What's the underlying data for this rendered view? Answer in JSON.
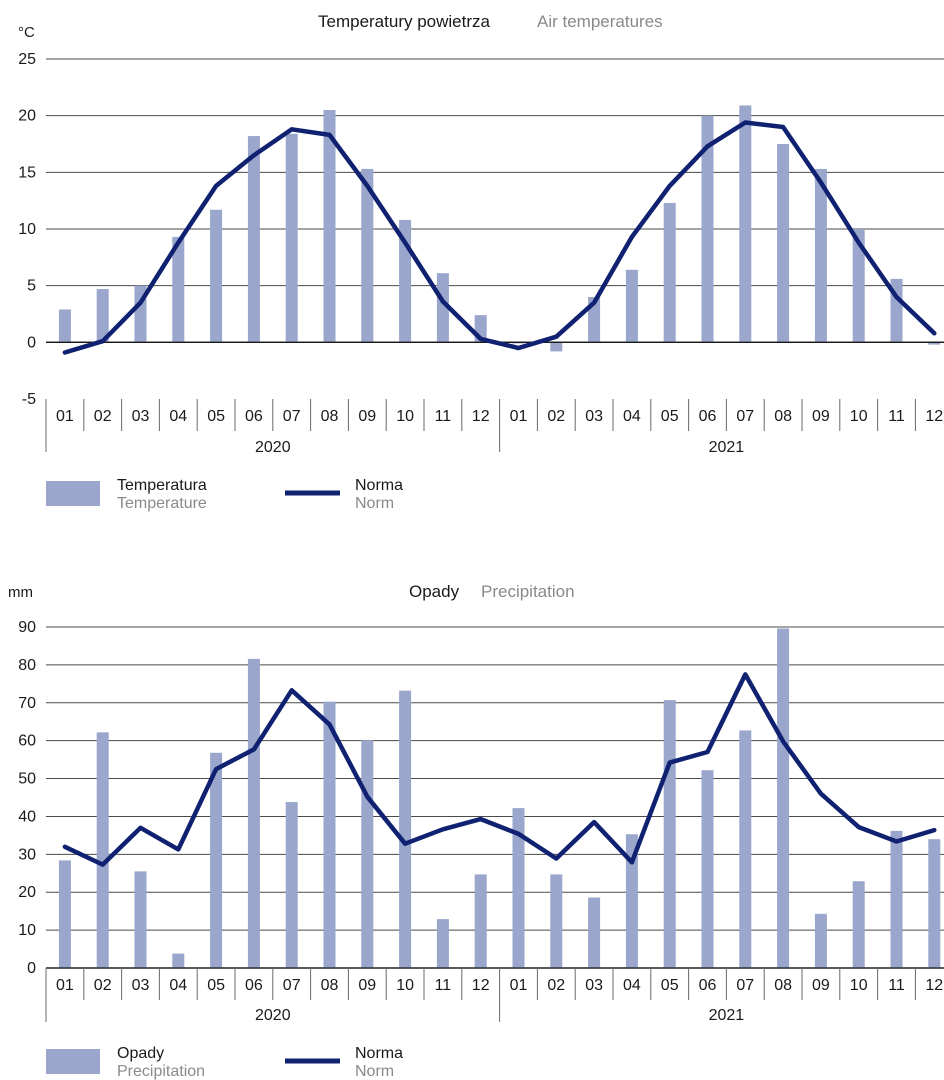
{
  "colors": {
    "bar": "#9aa6cc",
    "line": "#0f2170"
  },
  "chart_data": [
    {
      "type": "bar",
      "title": "Temperatury powietrza",
      "subtitle": "Air temperatures",
      "ylabel": "°C",
      "ylim": [
        -5,
        25
      ],
      "yticks": [
        "-5",
        "0",
        "5",
        "10",
        "15",
        "20",
        "25"
      ],
      "categories": [
        "01",
        "02",
        "03",
        "04",
        "05",
        "06",
        "07",
        "08",
        "09",
        "10",
        "11",
        "12",
        "01",
        "02",
        "03",
        "04",
        "05",
        "06",
        "07",
        "08",
        "09",
        "10",
        "11",
        "12"
      ],
      "years": [
        "2020",
        "2021"
      ],
      "series": [
        {
          "name": "Temperatura",
          "name_en": "Temperature",
          "type": "bar",
          "values": [
            2.9,
            4.7,
            5.0,
            9.3,
            11.7,
            18.2,
            18.4,
            20.5,
            15.3,
            10.8,
            6.1,
            2.4,
            -0.1,
            -0.8,
            4.0,
            6.4,
            12.3,
            20.0,
            20.9,
            17.5,
            15.3,
            10.0,
            5.6,
            -0.2
          ]
        },
        {
          "name": "Norma",
          "name_en": "Norm",
          "type": "line",
          "values": [
            -0.9,
            0.1,
            3.5,
            8.8,
            13.8,
            16.5,
            18.8,
            18.3,
            13.8,
            8.8,
            3.6,
            0.3,
            -0.5,
            0.5,
            3.5,
            9.3,
            13.8,
            17.3,
            19.4,
            19.0,
            14.1,
            8.8,
            4.0,
            0.8
          ]
        }
      ]
    },
    {
      "type": "bar",
      "title": "Opady",
      "subtitle": "Precipitation",
      "ylabel": "mm",
      "ylim": [
        0,
        90
      ],
      "yticks": [
        "0",
        "10",
        "20",
        "30",
        "40",
        "50",
        "60",
        "70",
        "80",
        "90"
      ],
      "categories": [
        "01",
        "02",
        "03",
        "04",
        "05",
        "06",
        "07",
        "08",
        "09",
        "10",
        "11",
        "12",
        "01",
        "02",
        "03",
        "04",
        "05",
        "06",
        "07",
        "08",
        "09",
        "10",
        "11",
        "12"
      ],
      "years": [
        "2020",
        "2021"
      ],
      "series": [
        {
          "name": "Opady",
          "name_en": "Precipitation",
          "type": "bar",
          "values": [
            28.4,
            62.2,
            25.5,
            3.8,
            56.8,
            81.6,
            43.8,
            70.3,
            60.1,
            73.2,
            12.9,
            24.7,
            42.2,
            24.7,
            18.6,
            35.3,
            70.7,
            52.2,
            62.7,
            89.6,
            14.3,
            22.9,
            36.2,
            34.0
          ]
        },
        {
          "name": "Norma",
          "name_en": "Norm",
          "type": "line",
          "values": [
            32.0,
            27.3,
            37.0,
            31.3,
            52.5,
            57.7,
            73.3,
            64.3,
            45.2,
            32.8,
            36.6,
            39.3,
            35.4,
            28.9,
            38.5,
            27.9,
            54.2,
            57.0,
            77.5,
            59.8,
            46.0,
            37.2,
            33.4,
            36.4
          ]
        }
      ]
    }
  ]
}
